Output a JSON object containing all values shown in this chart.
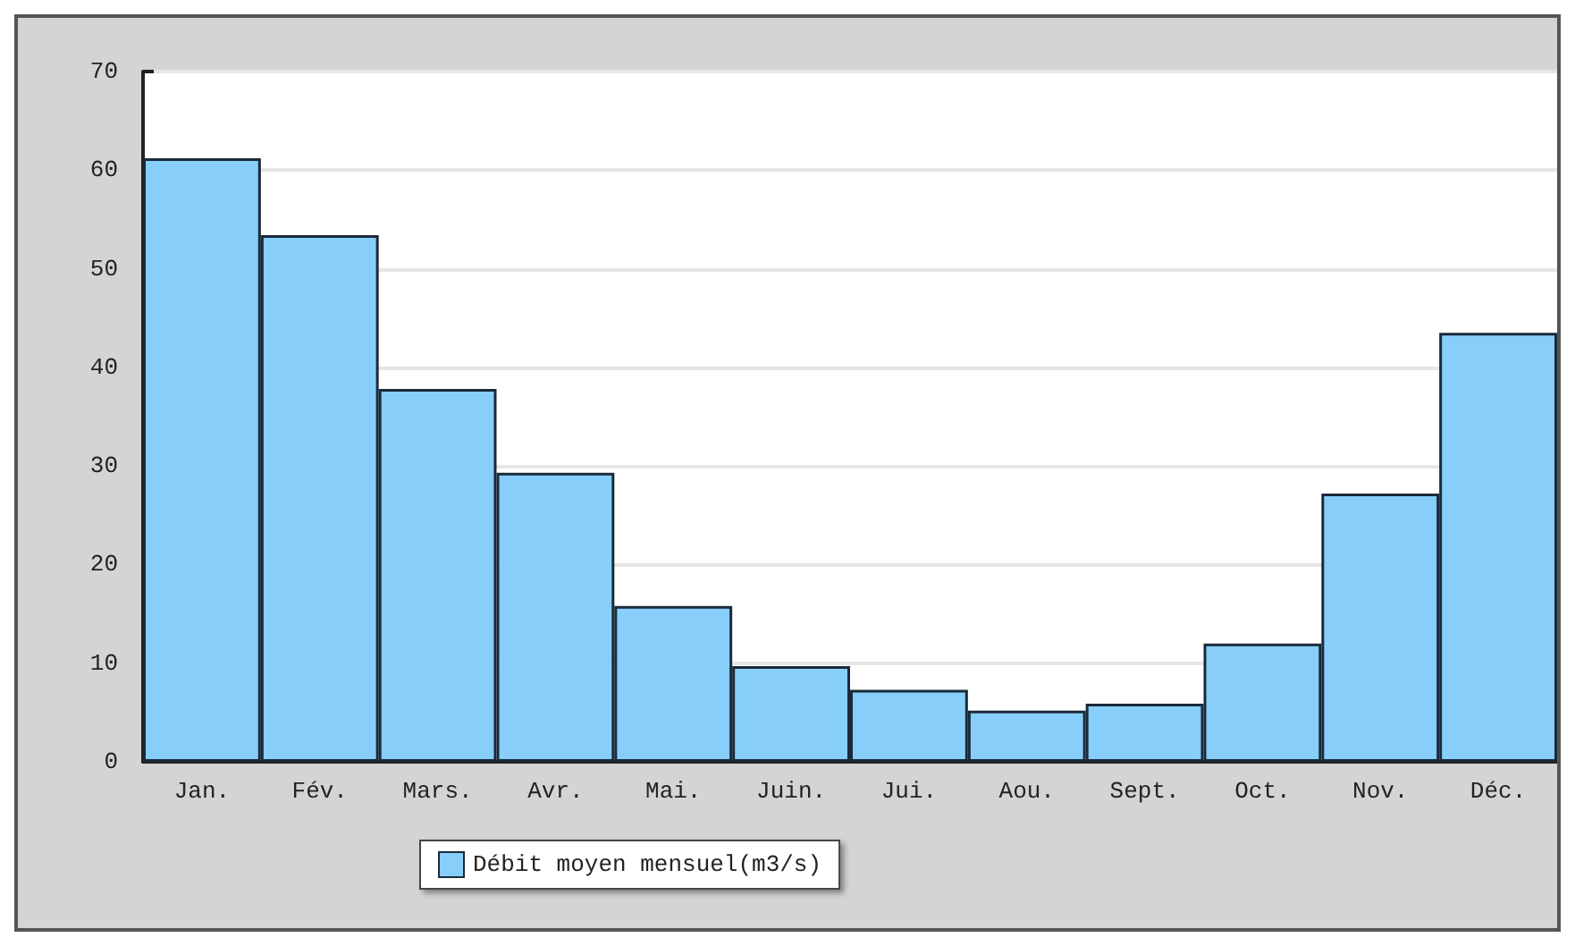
{
  "chart_data": {
    "type": "bar",
    "categories": [
      "Jan.",
      "Fév.",
      "Mars.",
      "Avr.",
      "Mai.",
      "Juin.",
      "Jui.",
      "Aou.",
      "Sept.",
      "Oct.",
      "Nov.",
      "Déc."
    ],
    "series": [
      {
        "name": "Débit moyen mensuel(m3/s)",
        "color": "#87cefa",
        "values": [
          61.2,
          53.4,
          37.8,
          29.3,
          15.8,
          9.7,
          7.3,
          5.2,
          5.9,
          12.0,
          27.2,
          43.5
        ]
      }
    ],
    "ylim": [
      0,
      70
    ],
    "yticks": [
      0,
      10,
      20,
      30,
      40,
      50,
      60,
      70
    ],
    "grid": "y",
    "legend": "bottom left"
  }
}
